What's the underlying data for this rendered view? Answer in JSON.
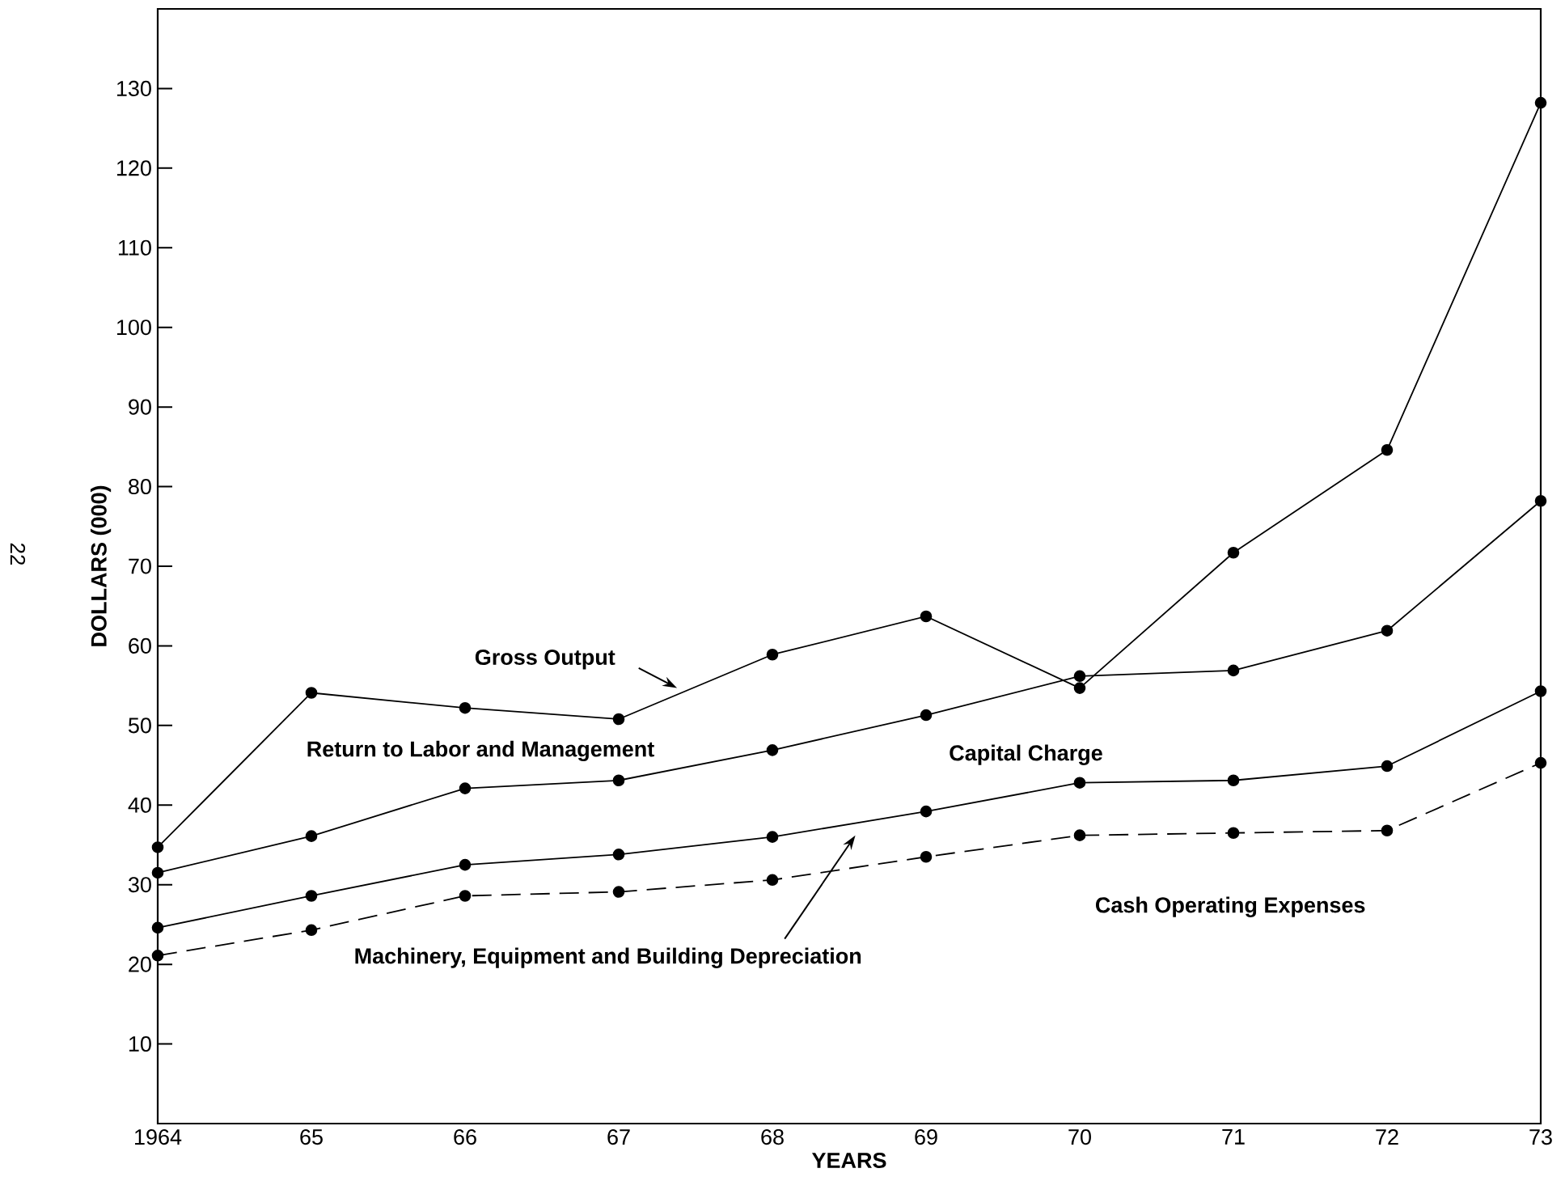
{
  "chart_data": {
    "type": "line",
    "xlabel": "YEARS",
    "ylabel": "DOLLARS (000)",
    "categories": [
      "1964",
      "65",
      "66",
      "67",
      "68",
      "69",
      "70",
      "71",
      "72",
      "73"
    ],
    "ylim": [
      0,
      140
    ],
    "yticks": [
      10,
      20,
      30,
      40,
      50,
      60,
      70,
      80,
      90,
      100,
      110,
      120,
      130
    ],
    "marker": "circle",
    "grid": false,
    "series": [
      {
        "color": "#000000",
        "line_style": "solid",
        "values": [
          34.7,
          54.1,
          52.2,
          50.8,
          58.9,
          63.7,
          54.7,
          71.7,
          84.6,
          128.2
        ]
      },
      {
        "color": "#000000",
        "line_style": "solid",
        "values": [
          31.5,
          36.1,
          42.1,
          43.1,
          46.9,
          51.3,
          56.2,
          56.9,
          61.9,
          78.2
        ]
      },
      {
        "color": "#000000",
        "line_style": "solid",
        "values": [
          24.6,
          28.6,
          32.5,
          33.8,
          36.0,
          39.2,
          42.8,
          43.1,
          44.9,
          54.3
        ]
      },
      {
        "color": "#000000",
        "line_style": "dashed",
        "values": [
          21.1,
          24.3,
          28.6,
          29.1,
          30.6,
          33.5,
          36.2,
          36.5,
          36.8,
          45.3
        ]
      }
    ],
    "annotations": [
      "Gross Output",
      "Return to Labor and Management",
      "Capital Charge",
      "Machinery, Equipment and Building Depreciation",
      "Cash Operating Expenses",
      "22"
    ]
  }
}
